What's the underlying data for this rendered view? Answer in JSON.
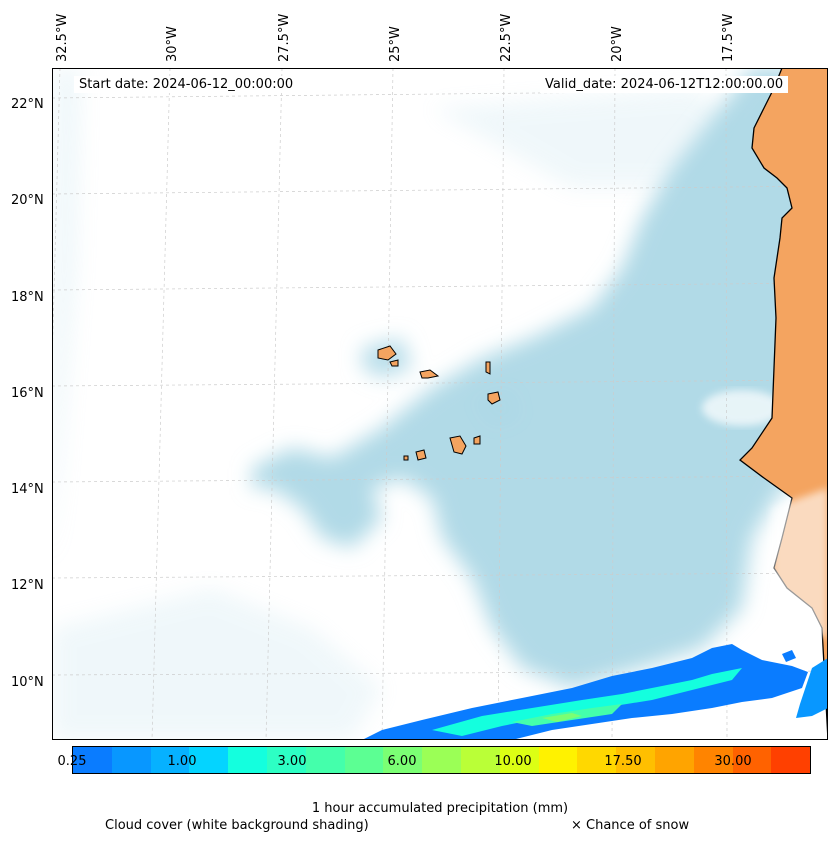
{
  "map": {
    "start_date": "Start date: 2024-06-12_00:00:00",
    "valid_date": "Valid_date: 2024-06-12T12:00:00.00",
    "lon_labels": [
      "32.5°W",
      "30°W",
      "27.5°W",
      "25°W",
      "22.5°W",
      "20°W",
      "17.5°W"
    ],
    "lat_labels": [
      "22°N",
      "20°N",
      "18°N",
      "16°N",
      "14°N",
      "12°N",
      "10°N"
    ],
    "colors": {
      "land": "#f4a460",
      "cloud": "#add8e6",
      "coast": "#000000"
    }
  },
  "colorbar": {
    "label": "1 hour accumulated precipitation (mm)",
    "tick_labels": [
      "0.25",
      "1.00",
      "3.00",
      "6.00",
      "10.00",
      "17.50",
      "30.00"
    ],
    "colors": [
      "#0a7cff",
      "#0897ff",
      "#06b1ff",
      "#04d4ff",
      "#14ffde",
      "#2dffc4",
      "#44ffab",
      "#5cff93",
      "#7bff74",
      "#9bff56",
      "#baff37",
      "#dcff14",
      "#fff200",
      "#ffd800",
      "#ffbf00",
      "#ffa400",
      "#ff8400",
      "#ff6200",
      "#ff4000"
    ]
  },
  "footer": {
    "cloud_cover": "Cloud cover (white background shading)",
    "snow": "× Chance of snow"
  }
}
